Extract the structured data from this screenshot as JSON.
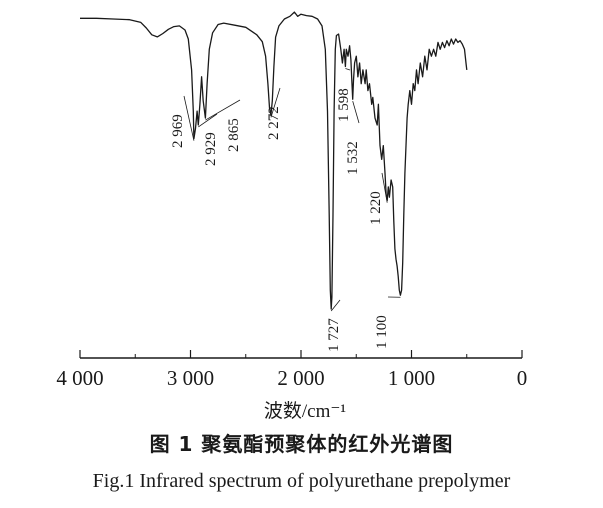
{
  "figure": {
    "caption_cn": "图 1   聚氨酯预聚体的红外光谱图",
    "caption_en": "Fig.1    Infrared spectrum of polyurethane prepolymer"
  },
  "chart_data": {
    "type": "line",
    "title": "",
    "xlabel": "波数/cm⁻¹",
    "ylabel": "",
    "xlim": [
      4000,
      0
    ],
    "ylim": [
      0,
      100
    ],
    "x_reversed": true,
    "grid": false,
    "x_ticks": [
      4000,
      3000,
      2000,
      1000,
      0
    ],
    "x_tick_labels": [
      "4 000",
      "3 000",
      "2 000",
      "1 000",
      "0"
    ],
    "series": [
      {
        "points": [
          [
            4000,
            97.0
          ],
          [
            3850,
            97.0
          ],
          [
            3700,
            96.8
          ],
          [
            3550,
            96.6
          ],
          [
            3450,
            95.8
          ],
          [
            3400,
            94.2
          ],
          [
            3350,
            92.2
          ],
          [
            3300,
            91.6
          ],
          [
            3250,
            92.6
          ],
          [
            3200,
            93.8
          ],
          [
            3150,
            94.6
          ],
          [
            3100,
            94.8
          ],
          [
            3050,
            93.6
          ],
          [
            3020,
            91.0
          ],
          [
            2990,
            82.0
          ],
          [
            2975,
            70.0
          ],
          [
            2969,
            62.0
          ],
          [
            2955,
            65.0
          ],
          [
            2940,
            70.0
          ],
          [
            2929,
            66.0
          ],
          [
            2915,
            72.0
          ],
          [
            2900,
            80.0
          ],
          [
            2885,
            73.0
          ],
          [
            2865,
            68.0
          ],
          [
            2850,
            78.0
          ],
          [
            2830,
            88.0
          ],
          [
            2800,
            92.8
          ],
          [
            2750,
            95.2
          ],
          [
            2700,
            95.6
          ],
          [
            2600,
            95.0
          ],
          [
            2500,
            94.4
          ],
          [
            2400,
            92.2
          ],
          [
            2350,
            90.2
          ],
          [
            2320,
            86.0
          ],
          [
            2300,
            78.0
          ],
          [
            2285,
            71.0
          ],
          [
            2272,
            68.8
          ],
          [
            2260,
            73.0
          ],
          [
            2245,
            83.0
          ],
          [
            2230,
            91.5
          ],
          [
            2200,
            94.8
          ],
          [
            2150,
            96.8
          ],
          [
            2100,
            97.6
          ],
          [
            2060,
            98.8
          ],
          [
            2030,
            97.6
          ],
          [
            2000,
            98.2
          ],
          [
            1950,
            97.8
          ],
          [
            1900,
            97.6
          ],
          [
            1850,
            96.8
          ],
          [
            1810,
            94.8
          ],
          [
            1780,
            88.0
          ],
          [
            1760,
            70.0
          ],
          [
            1745,
            40.0
          ],
          [
            1735,
            18.0
          ],
          [
            1727,
            12.5
          ],
          [
            1720,
            16.0
          ],
          [
            1710,
            40.0
          ],
          [
            1700,
            70.0
          ],
          [
            1690,
            88.0
          ],
          [
            1680,
            92.0
          ],
          [
            1660,
            92.4
          ],
          [
            1640,
            88.0
          ],
          [
            1625,
            84.0
          ],
          [
            1610,
            88.0
          ],
          [
            1598,
            83.0
          ],
          [
            1590,
            88.0
          ],
          [
            1575,
            86.0
          ],
          [
            1560,
            89.0
          ],
          [
            1548,
            85.0
          ],
          [
            1540,
            79.0
          ],
          [
            1532,
            73.5
          ],
          [
            1525,
            79.0
          ],
          [
            1515,
            84.0
          ],
          [
            1500,
            86.0
          ],
          [
            1485,
            80.0
          ],
          [
            1470,
            84.0
          ],
          [
            1455,
            78.0
          ],
          [
            1440,
            82.0
          ],
          [
            1420,
            78.0
          ],
          [
            1410,
            82.0
          ],
          [
            1395,
            76.0
          ],
          [
            1380,
            78.0
          ],
          [
            1360,
            72.0
          ],
          [
            1350,
            74.0
          ],
          [
            1330,
            68.0
          ],
          [
            1310,
            66.0
          ],
          [
            1300,
            72.0
          ],
          [
            1285,
            60.0
          ],
          [
            1270,
            56.0
          ],
          [
            1255,
            60.0
          ],
          [
            1240,
            52.0
          ],
          [
            1230,
            46.0
          ],
          [
            1220,
            44.0
          ],
          [
            1210,
            48.0
          ],
          [
            1200,
            45.0
          ],
          [
            1185,
            50.0
          ],
          [
            1170,
            48.0
          ],
          [
            1160,
            38.0
          ],
          [
            1150,
            30.0
          ],
          [
            1140,
            27.0
          ],
          [
            1130,
            25.0
          ],
          [
            1120,
            22.0
          ],
          [
            1110,
            18.0
          ],
          [
            1100,
            16.5
          ],
          [
            1090,
            18.0
          ],
          [
            1080,
            26.0
          ],
          [
            1070,
            40.0
          ],
          [
            1060,
            52.0
          ],
          [
            1050,
            60.0
          ],
          [
            1040,
            68.0
          ],
          [
            1030,
            72.0
          ],
          [
            1015,
            76.0
          ],
          [
            1000,
            72.0
          ],
          [
            985,
            78.0
          ],
          [
            970,
            76.0
          ],
          [
            955,
            82.0
          ],
          [
            940,
            78.0
          ],
          [
            920,
            84.0
          ],
          [
            900,
            80.0
          ],
          [
            880,
            86.0
          ],
          [
            860,
            82.0
          ],
          [
            840,
            88.0
          ],
          [
            820,
            86.0
          ],
          [
            800,
            88.0
          ],
          [
            780,
            86.0
          ],
          [
            760,
            90.0
          ],
          [
            740,
            88.0
          ],
          [
            720,
            90.0
          ],
          [
            700,
            88.5
          ],
          [
            680,
            90.5
          ],
          [
            660,
            89.0
          ],
          [
            640,
            91.0
          ],
          [
            620,
            89.5
          ],
          [
            600,
            91.0
          ],
          [
            580,
            90.0
          ],
          [
            560,
            90.5
          ],
          [
            540,
            89.5
          ],
          [
            520,
            88.0
          ],
          [
            505,
            83.5
          ],
          [
            500,
            82.0
          ]
        ]
      }
    ],
    "annotations": [
      {
        "text": "2 969",
        "x": 2969,
        "y": 62.0
      },
      {
        "text": "2 929",
        "x": 2929,
        "y": 66.0
      },
      {
        "text": "2 865",
        "x": 2865,
        "y": 68.0
      },
      {
        "text": "2 272",
        "x": 2272,
        "y": 68.8
      },
      {
        "text": "1 598",
        "x": 1598,
        "y": 83.0
      },
      {
        "text": "1 532",
        "x": 1532,
        "y": 73.5
      },
      {
        "text": "1 220",
        "x": 1220,
        "y": 44.0
      },
      {
        "text": "1 727",
        "x": 1727,
        "y": 12.5
      },
      {
        "text": "1 100",
        "x": 1100,
        "y": 16.5
      }
    ]
  }
}
